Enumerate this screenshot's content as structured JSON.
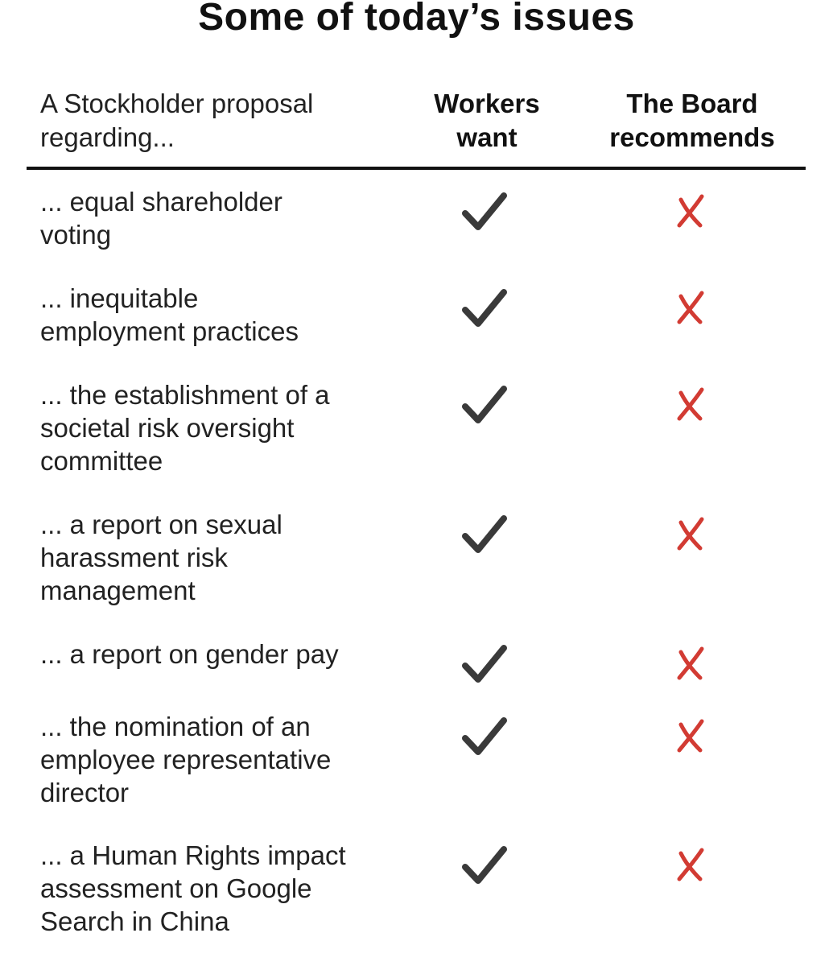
{
  "title": "Some of today’s issues",
  "header": {
    "proposal_lines": [
      "A Stockholder proposal",
      "regarding..."
    ],
    "workers_lines": [
      "Workers",
      "want"
    ],
    "board_lines": [
      "The Board",
      "recommends"
    ]
  },
  "colors": {
    "check": "#3a3a3a",
    "cross": "#d23b33",
    "text": "#222222",
    "rule": "#111111"
  },
  "icons": {
    "workers": "check-mark-icon",
    "board": "cross-mark-icon"
  },
  "rows": [
    {
      "lines": [
        "... equal shareholder",
        "voting"
      ],
      "workers_want": true,
      "board_recommends": false
    },
    {
      "lines": [
        "... inequitable",
        "employment practices"
      ],
      "workers_want": true,
      "board_recommends": false
    },
    {
      "lines": [
        "... the establishment of a",
        "societal risk oversight",
        "committee"
      ],
      "workers_want": true,
      "board_recommends": false
    },
    {
      "lines": [
        "... a report on sexual",
        "harassment risk",
        "management"
      ],
      "workers_want": true,
      "board_recommends": false
    },
    {
      "lines": [
        "... a report on gender pay"
      ],
      "workers_want": true,
      "board_recommends": false
    },
    {
      "lines": [
        "... the nomination of an",
        "employee representative",
        "director"
      ],
      "workers_want": true,
      "board_recommends": false
    },
    {
      "lines": [
        "... a Human Rights impact",
        "assessment on Google",
        "Search in China"
      ],
      "workers_want": true,
      "board_recommends": false
    }
  ]
}
